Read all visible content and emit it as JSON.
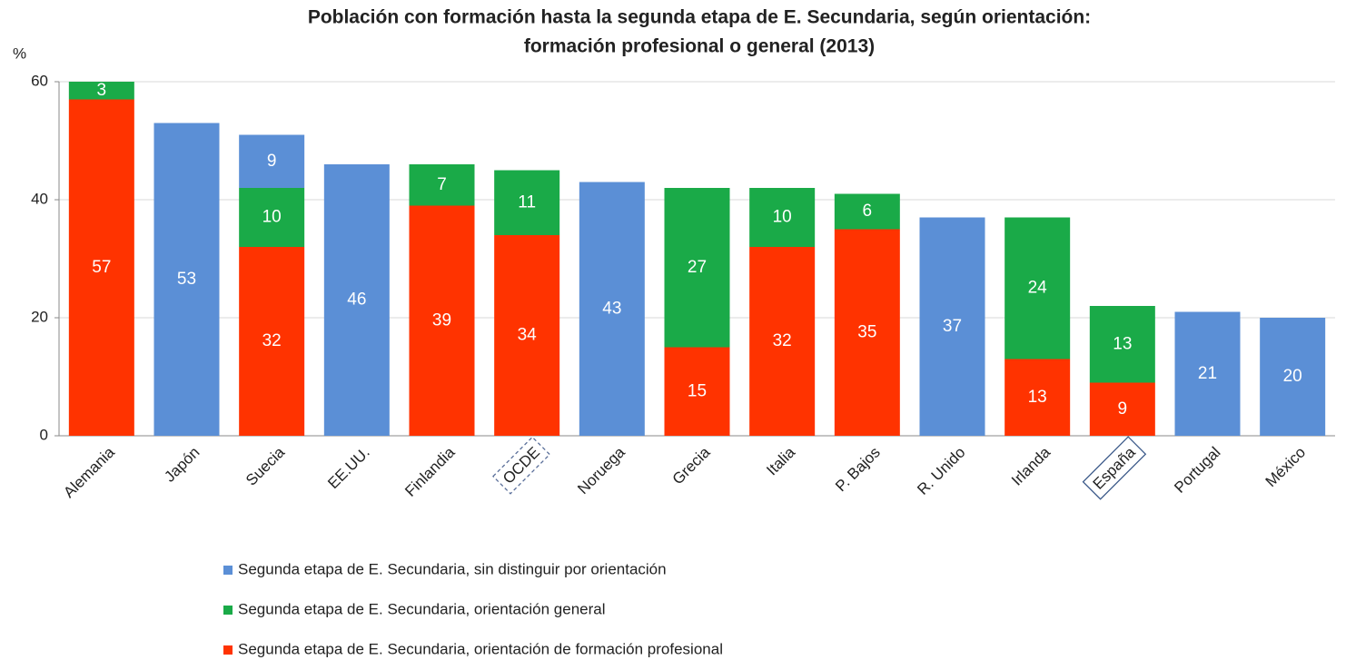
{
  "chart_data": {
    "type": "stacked_bar",
    "title": [
      "Población con formación hasta la segunda etapa de E. Secundaria, según orientación:",
      "formación profesional o general (2013)"
    ],
    "y_label": "%",
    "categories": [
      "Alemania",
      "Japón",
      "Suecia",
      "EE.UU.",
      "Finlandia",
      "OCDE",
      "Noruega",
      "Grecia",
      "Italia",
      "P. Bajos",
      "R. Unido",
      "Irlanda",
      "España",
      "Portugal",
      "México"
    ],
    "series": [
      {
        "name": "Segunda etapa de E. Secundaria, sin distinguir por orientación",
        "color": "#5b8fd6",
        "values": [
          null,
          53,
          9,
          46,
          null,
          null,
          43,
          null,
          null,
          null,
          37,
          null,
          null,
          21,
          20
        ]
      },
      {
        "name": "Segunda etapa de E. Secundaria, orientación general",
        "color": "#1aaa48",
        "values": [
          3,
          null,
          10,
          null,
          7,
          11,
          null,
          27,
          10,
          6,
          null,
          24,
          13,
          null,
          null
        ]
      },
      {
        "name": "Segunda etapa de E. Secundaria, orientación de formación profesional",
        "color": "#ff3300",
        "values": [
          57,
          null,
          32,
          null,
          39,
          34,
          null,
          15,
          32,
          35,
          null,
          13,
          9,
          null,
          null
        ]
      }
    ],
    "ylim": [
      0,
      60
    ],
    "yticks": [
      0,
      20,
      40,
      60
    ],
    "grid": true,
    "legend": "bottom"
  }
}
